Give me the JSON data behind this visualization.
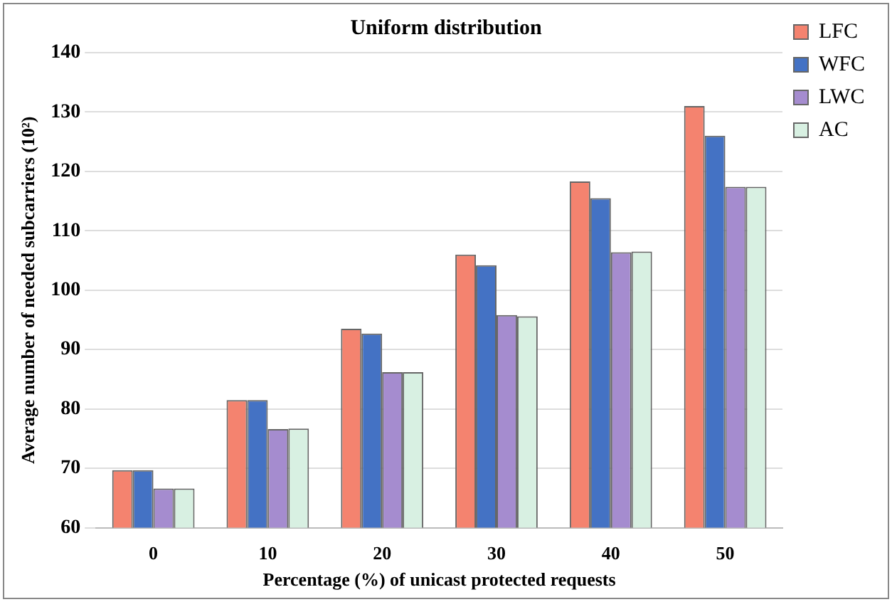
{
  "chart_data": {
    "type": "bar",
    "title": "Uniform distribution",
    "xlabel": "Percentage (%) of unicast protected requests",
    "ylabel": "Average number of needed subcarriers (10²)",
    "categories": [
      "0",
      "10",
      "20",
      "30",
      "40",
      "50"
    ],
    "series": [
      {
        "name": "LFC",
        "color": "#f4836f",
        "values": [
          69.7,
          81.5,
          93.5,
          106,
          118.3,
          131
        ]
      },
      {
        "name": "WFC",
        "color": "#4472c4",
        "values": [
          69.7,
          81.5,
          92.7,
          104.2,
          115.5,
          126
        ]
      },
      {
        "name": "LWC",
        "color": "#a58ccf",
        "values": [
          66.6,
          76.6,
          86.2,
          95.8,
          106.4,
          117.4
        ]
      },
      {
        "name": "AC",
        "color": "#d8f0e2",
        "values": [
          66.6,
          76.7,
          86.2,
          95.6,
          106.5,
          117.4
        ]
      }
    ],
    "ylim": [
      60,
      140
    ],
    "yticks": [
      60,
      70,
      80,
      90,
      100,
      110,
      120,
      130,
      140
    ],
    "grid": "y",
    "legend": "top right"
  }
}
